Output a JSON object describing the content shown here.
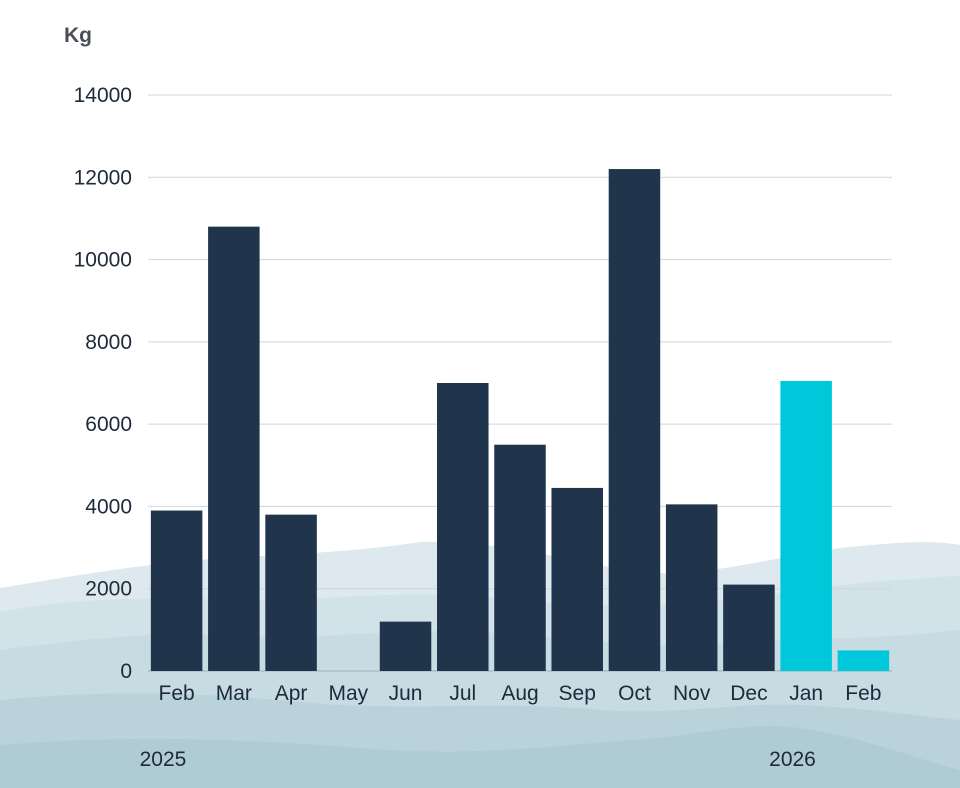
{
  "chart_data": {
    "type": "bar",
    "ylabel": "Kg",
    "categories": [
      "Feb",
      "Mar",
      "Apr",
      "May",
      "Jun",
      "Jul",
      "Aug",
      "Sep",
      "Oct",
      "Nov",
      "Dec",
      "Jan",
      "Feb"
    ],
    "values": [
      3900,
      10800,
      3800,
      0,
      1200,
      7000,
      5500,
      4450,
      12200,
      4050,
      2100,
      7050,
      500
    ],
    "ylim": [
      0,
      14000
    ],
    "yticks": [
      0,
      2000,
      4000,
      6000,
      8000,
      10000,
      12000,
      14000
    ],
    "year_labels": [
      {
        "label": "2025",
        "at_category": 0
      },
      {
        "label": "2026",
        "at_category": 11
      }
    ],
    "bar_colors": [
      "#20344b",
      "#20344b",
      "#20344b",
      "#20344b",
      "#20344b",
      "#20344b",
      "#20344b",
      "#20344b",
      "#20344b",
      "#20344b",
      "#20344b",
      "#00c8db",
      "#00c8db"
    ],
    "grid": true,
    "legend": "none"
  }
}
